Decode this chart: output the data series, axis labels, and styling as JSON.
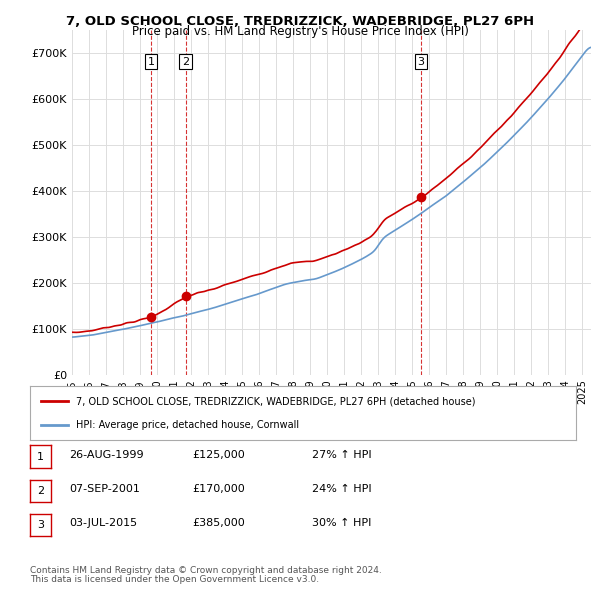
{
  "title": "7, OLD SCHOOL CLOSE, TREDRIZZICK, WADEBRIDGE, PL27 6PH",
  "subtitle": "Price paid vs. HM Land Registry's House Price Index (HPI)",
  "ylim": [
    0,
    750000
  ],
  "yticks": [
    0,
    100000,
    200000,
    300000,
    400000,
    500000,
    600000,
    700000
  ],
  "ytick_labels": [
    "£0",
    "£100K",
    "£200K",
    "£300K",
    "£400K",
    "£500K",
    "£600K",
    "£700K"
  ],
  "xlim_start": 1995.0,
  "xlim_end": 2025.5,
  "sale_dates": [
    1999.65,
    2001.69,
    2015.5
  ],
  "sale_prices": [
    125000,
    170000,
    385000
  ],
  "sale_labels": [
    "1",
    "2",
    "3"
  ],
  "legend_line1": "7, OLD SCHOOL CLOSE, TREDRIZZICK, WADEBRIDGE, PL27 6PH (detached house)",
  "legend_line2": "HPI: Average price, detached house, Cornwall",
  "table_rows": [
    [
      "1",
      "26-AUG-1999",
      "£125,000",
      "27% ↑ HPI"
    ],
    [
      "2",
      "07-SEP-2001",
      "£170,000",
      "24% ↑ HPI"
    ],
    [
      "3",
      "03-JUL-2015",
      "£385,000",
      "30% ↑ HPI"
    ]
  ],
  "footnote1": "Contains HM Land Registry data © Crown copyright and database right 2024.",
  "footnote2": "This data is licensed under the Open Government Licence v3.0.",
  "line_color_red": "#cc0000",
  "line_color_blue": "#6699cc",
  "vline_color": "#cc0000",
  "background_color": "#ffffff",
  "grid_color": "#dddddd"
}
